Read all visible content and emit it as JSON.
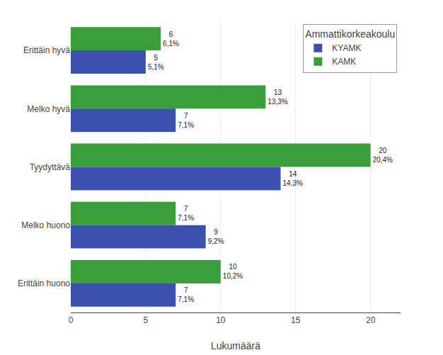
{
  "chart_data": {
    "type": "bar",
    "orientation": "horizontal",
    "categories": [
      "Erittäin hyvä",
      "Melko hyvä",
      "Tyydyttävä",
      "Melko huono",
      "Erittäin huono"
    ],
    "series": [
      {
        "name": "KAMK",
        "color": "#3a9e3a",
        "values": [
          6,
          13,
          20,
          7,
          10
        ],
        "value_labels": [
          "6\n6,1%",
          "13\n13,3%",
          "20\n20,4%",
          "7\n7,1%",
          "10\n10,2%"
        ]
      },
      {
        "name": "KYAMK",
        "color": "#3c50b0",
        "values": [
          5,
          7,
          14,
          9,
          7
        ],
        "value_labels": [
          "5\n5,1%",
          "7\n7,1%",
          "14\n14,3%",
          "9\n9,2%",
          "7\n7,1%"
        ]
      }
    ],
    "xlabel": "Lukumäärä",
    "legend_title": "Ammattikorkeakoulu",
    "legend": "upper right",
    "xlim": [
      0,
      22
    ],
    "xticks": [
      0,
      5,
      10,
      15,
      20
    ],
    "grid": true,
    "data_labels": true
  }
}
